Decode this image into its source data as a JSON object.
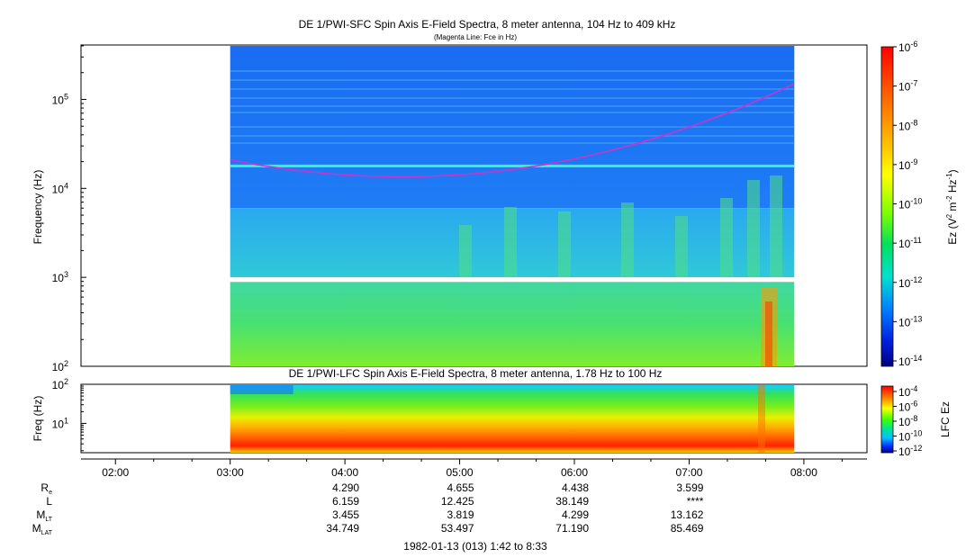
{
  "chart_data": [
    {
      "type": "heatmap",
      "title": "DE 1/PWI-SFC  Spin Axis E-Field Spectra, 8 meter antenna, 104 Hz to 409 kHz",
      "subtitle": "(Magenta Line: Fce in Hz)",
      "ylabel": "Frequency (Hz)",
      "yscale": "log",
      "ylim": [
        100,
        409000
      ],
      "y_ticks": [
        {
          "value": 100,
          "label": "10",
          "exp": "2"
        },
        {
          "value": 1000,
          "label": "10",
          "exp": "3"
        },
        {
          "value": 10000,
          "label": "10",
          "exp": "4"
        },
        {
          "value": 100000,
          "label": "10",
          "exp": "5"
        }
      ],
      "data_start": "03:00",
      "data_end": "07:55",
      "annotations": [
        {
          "name": "Fce",
          "color": "#cc33cc",
          "hz_at_03_00": 21000,
          "hz_min": 13500,
          "hz_min_time": "04:30",
          "hz_at_07_55": 150000
        }
      ],
      "colorbar": {
        "label": "Ez (V",
        "label_sup1": "2",
        "label_mid": " m",
        "label_sup2": "-2",
        "label_mid2": " Hz",
        "label_sup3": "-1",
        "label_end": ")",
        "scale": "log",
        "range": [
          1e-14,
          1e-06
        ],
        "ticks": [
          {
            "value": 1e-06,
            "label": "10",
            "exp": "-6"
          },
          {
            "value": 1e-07,
            "label": "10",
            "exp": "-7"
          },
          {
            "value": 1e-08,
            "label": "10",
            "exp": "-8"
          },
          {
            "value": 1e-09,
            "label": "10",
            "exp": "-9"
          },
          {
            "value": 1e-10,
            "label": "10",
            "exp": "-10"
          },
          {
            "value": 1e-11,
            "label": "10",
            "exp": "-11"
          },
          {
            "value": 1e-12,
            "label": "10",
            "exp": "-12"
          },
          {
            "value": 1e-13,
            "label": "10",
            "exp": "-13"
          },
          {
            "value": 1e-14,
            "label": "10",
            "exp": "-14"
          }
        ]
      }
    },
    {
      "type": "heatmap",
      "title": "DE 1/PWI-LFC  Spin Axis E-Field Spectra, 8 meter antenna, 1.78 Hz to 100 Hz",
      "ylabel": "Freq (Hz)",
      "yscale": "log",
      "ylim": [
        1.78,
        100
      ],
      "y_ticks": [
        {
          "value": 10,
          "label": "10",
          "exp": "1"
        },
        {
          "value": 100,
          "label": "10",
          "exp": "2"
        }
      ],
      "data_start": "03:00",
      "data_end": "07:55",
      "colorbar": {
        "label": "LFC Ez",
        "scale": "log",
        "range": [
          1e-12,
          0.0001
        ],
        "ticks": [
          {
            "value": 0.0001,
            "label": "10",
            "exp": "-4"
          },
          {
            "value": 1e-06,
            "label": "10",
            "exp": "-6"
          },
          {
            "value": 1e-08,
            "label": "10",
            "exp": "-8"
          },
          {
            "value": 1e-10,
            "label": "10",
            "exp": "-10"
          },
          {
            "value": 1e-12,
            "label": "10",
            "exp": "-12"
          }
        ]
      }
    }
  ],
  "x_axis": {
    "range": [
      "01:42",
      "08:33"
    ],
    "ticks": [
      "02:00",
      "03:00",
      "04:00",
      "05:00",
      "06:00",
      "07:00",
      "08:00"
    ]
  },
  "ephemeris": {
    "rows": [
      {
        "label": "R",
        "sub": "e",
        "values": [
          "4.290",
          "4.655",
          "4.438",
          "3.599"
        ]
      },
      {
        "label": "L",
        "sub": "",
        "values": [
          "6.159",
          "12.425",
          "38.149",
          "****"
        ]
      },
      {
        "label": "M",
        "sub": "LT",
        "values": [
          "3.455",
          "3.819",
          "4.299",
          "13.162"
        ]
      },
      {
        "label": "M",
        "sub": "LAT",
        "values": [
          "34.749",
          "53.497",
          "71.190",
          "85.469"
        ]
      }
    ],
    "at_ticks": [
      "04:00",
      "05:00",
      "06:00",
      "07:00"
    ]
  },
  "footer": "1982-01-13 (013) 1:42 to 8:33"
}
